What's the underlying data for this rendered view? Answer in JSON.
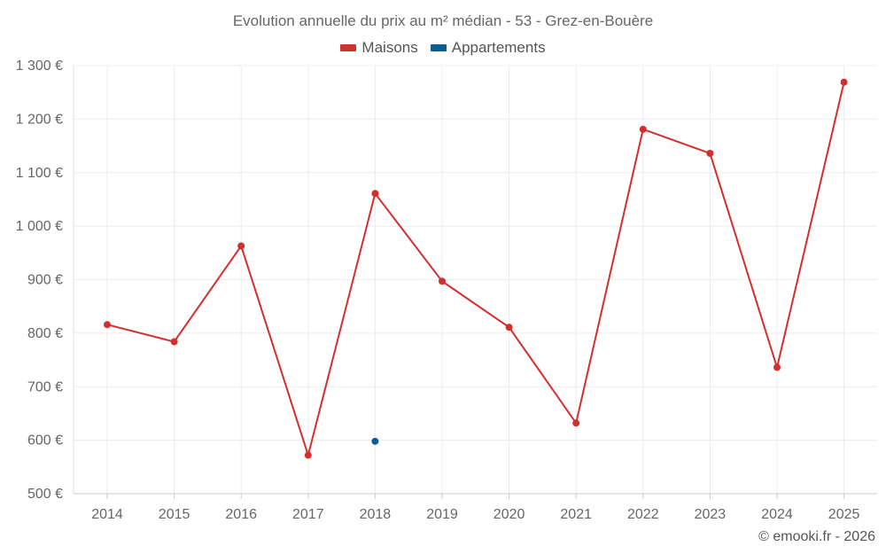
{
  "chart_data": {
    "type": "line",
    "title": "Evolution annuelle du prix au m² médian - 53 - Grez-en-Bouère",
    "categories": [
      "2014",
      "2015",
      "2016",
      "2017",
      "2018",
      "2019",
      "2020",
      "2021",
      "2022",
      "2023",
      "2024",
      "2025"
    ],
    "series": [
      {
        "name": "Maisons",
        "color": "#d32f2f",
        "values": [
          816,
          784,
          963,
          572,
          1061,
          897,
          811,
          632,
          1181,
          1136,
          736,
          1269
        ]
      },
      {
        "name": "Appartements",
        "color": "#0b5e94",
        "values": [
          null,
          null,
          null,
          null,
          598,
          null,
          null,
          null,
          null,
          null,
          null,
          null
        ]
      }
    ],
    "ylim": [
      500,
      1300
    ],
    "yticks": [
      500,
      600,
      700,
      800,
      900,
      1000,
      1100,
      1200,
      1300
    ],
    "ytick_labels": [
      "500 €",
      "600 €",
      "700 €",
      "800 €",
      "900 €",
      "1 000 €",
      "1 100 €",
      "1 200 €",
      "1 300 €"
    ],
    "grid": true,
    "legend_position": "top-center",
    "xlabel": "",
    "ylabel": ""
  },
  "credit": "© emooki.fr - 2026"
}
